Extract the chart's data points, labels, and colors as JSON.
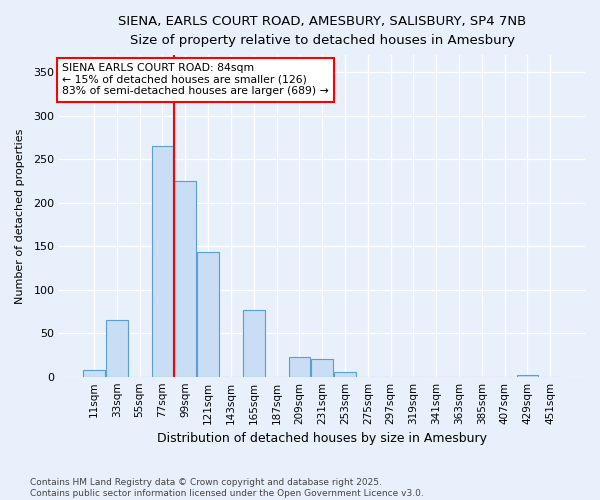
{
  "title_line1": "SIENA, EARLS COURT ROAD, AMESBURY, SALISBURY, SP4 7NB",
  "title_line2": "Size of property relative to detached houses in Amesbury",
  "xlabel": "Distribution of detached houses by size in Amesbury",
  "ylabel": "Number of detached properties",
  "categories": [
    "11sqm",
    "33sqm",
    "55sqm",
    "77sqm",
    "99sqm",
    "121sqm",
    "143sqm",
    "165sqm",
    "187sqm",
    "209sqm",
    "231sqm",
    "253sqm",
    "275sqm",
    "297sqm",
    "319sqm",
    "341sqm",
    "363sqm",
    "385sqm",
    "407sqm",
    "429sqm",
    "451sqm"
  ],
  "values": [
    8,
    65,
    0,
    265,
    225,
    144,
    0,
    77,
    0,
    23,
    20,
    5,
    0,
    0,
    0,
    0,
    0,
    0,
    0,
    2,
    0
  ],
  "bar_color": "#c9ddf5",
  "bar_edge_color": "#5a9fd4",
  "red_line_index": 3.5,
  "annotation_title": "SIENA EARLS COURT ROAD: 84sqm",
  "annotation_line2": "← 15% of detached houses are smaller (126)",
  "annotation_line3": "83% of semi-detached houses are larger (689) →",
  "ylim": [
    0,
    370
  ],
  "yticks": [
    0,
    50,
    100,
    150,
    200,
    250,
    300,
    350
  ],
  "background_color": "#e8f0fb",
  "footer_line1": "Contains HM Land Registry data © Crown copyright and database right 2025.",
  "footer_line2": "Contains public sector information licensed under the Open Government Licence v3.0."
}
